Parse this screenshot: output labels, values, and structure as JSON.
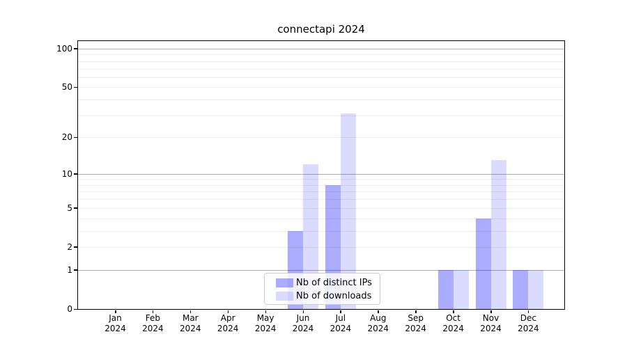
{
  "title": "connectapi 2024",
  "chart_data": {
    "type": "bar",
    "title": "connectapi 2024",
    "yscale": "log1p",
    "grid": true,
    "categories": [
      "Jan",
      "Feb",
      "Mar",
      "Apr",
      "May",
      "Jun",
      "Jul",
      "Aug",
      "Sep",
      "Oct",
      "Nov",
      "Dec"
    ],
    "x_sub_label": "2024",
    "series": [
      {
        "name": "Nb of distinct IPs",
        "color": "rgba(0,0,255,0.33)",
        "values": [
          0,
          0,
          0,
          0,
          0,
          3,
          8,
          0,
          0,
          1,
          4,
          1
        ]
      },
      {
        "name": "Nb of downloads",
        "color": "rgba(0,0,255,0.14)",
        "values": [
          0,
          0,
          0,
          0,
          0,
          12,
          31,
          0,
          0,
          1,
          13,
          1
        ]
      }
    ],
    "y_ticks": [
      "0",
      "1",
      "2",
      "5",
      "10",
      "20",
      "50",
      "100"
    ],
    "ylim": [
      0,
      115
    ],
    "legend_position": "lower center"
  },
  "colors": {
    "grid_major": "#b0b0b0",
    "grid_minor": "#ededed",
    "axis": "#000000",
    "legend_border": "#cccccc"
  }
}
